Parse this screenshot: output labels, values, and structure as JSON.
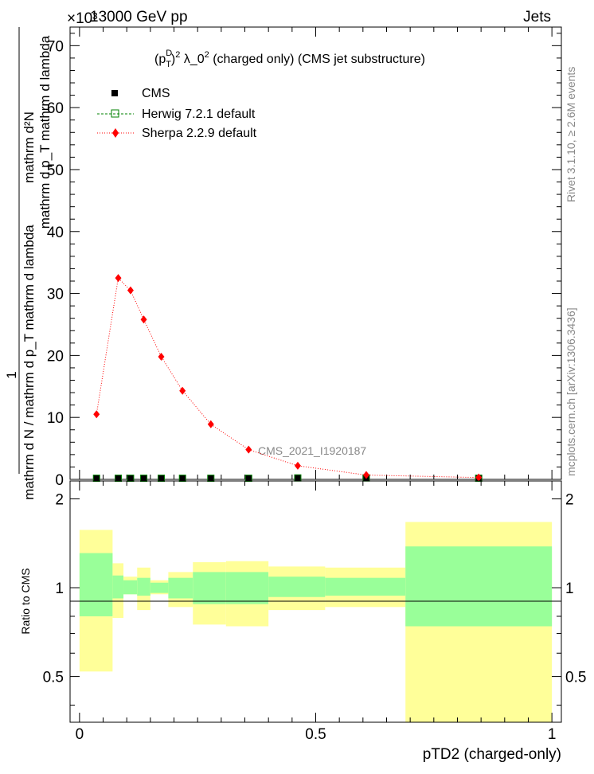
{
  "header": {
    "energy": "13000 GeV pp",
    "category": "Jets",
    "exponent": "×10³"
  },
  "side": {
    "rivet": "Rivet 3.1.10, ≥ 2.6M events",
    "mcplots": "mcplots.cern.ch [arXiv:1306.3436]"
  },
  "watermark": "CMS_2021_I1920187",
  "chart_data": [
    {
      "type": "line",
      "title": "(p_T^D)² λ_0² (charged only) (CMS jet substructure)",
      "title_parts": {
        "p": "(p",
        "sup": "D",
        "sub": "T",
        "rest": ")",
        "sq1": "2",
        "mid": " λ_0",
        "sq2": "2",
        "tail": " (charged only) (CMS jet substructure)"
      },
      "ylabel_top": "1",
      "ylabel_bottom": "mathrm d N / mathrm d p_T mathrm d lambda",
      "ylabel_num": "mathrm d²N",
      "ylabel_den": "mathrm d p_T mathrm d lambda",
      "ylim": [
        0,
        73
      ],
      "yticks": [
        0,
        10,
        20,
        30,
        40,
        50,
        60,
        70
      ],
      "ytick_labels": [
        "0",
        "10",
        "20",
        "30",
        "40",
        "50",
        "60",
        "70"
      ],
      "xlim": [
        -0.02,
        1.02
      ],
      "legend_placement": "top-left",
      "series": [
        {
          "name": "CMS",
          "color": "#000000",
          "marker": "square",
          "x": [
            0.036,
            0.082,
            0.108,
            0.136,
            0.173,
            0.218,
            0.278,
            0.358,
            0.462,
            0.607,
            0.845
          ],
          "y": [
            0.05,
            0.05,
            0.05,
            0.05,
            0.05,
            0.05,
            0.05,
            0.05,
            0.1,
            0.1,
            0.05
          ]
        },
        {
          "name": "Herwig 7.2.1 default",
          "color": "#008000",
          "marker": "open-square",
          "x": [
            0.036,
            0.082,
            0.108,
            0.136,
            0.173,
            0.218,
            0.278,
            0.358,
            0.462,
            0.607,
            0.845
          ],
          "y": [
            0.05,
            0.05,
            0.05,
            0.05,
            0.05,
            0.05,
            0.05,
            0.05,
            0.1,
            0.1,
            0.05
          ]
        },
        {
          "name": "Sherpa 2.2.9 default",
          "color": "#ff0000",
          "marker": "diamond",
          "x": [
            0.036,
            0.082,
            0.108,
            0.136,
            0.173,
            0.218,
            0.278,
            0.358,
            0.462,
            0.607,
            0.845
          ],
          "y": [
            10.5,
            32.5,
            30.5,
            25.8,
            19.8,
            14.3,
            8.9,
            4.8,
            2.2,
            0.7,
            0.3
          ]
        }
      ]
    },
    {
      "type": "area",
      "ylabel": "Ratio to CMS",
      "xlabel": "pTD2 (charged-only)",
      "ylim": [
        0.35,
        2.3
      ],
      "yticks": [
        0.5,
        1,
        2
      ],
      "ytick_labels": [
        "0.5",
        "1",
        "2"
      ],
      "xlim": [
        -0.02,
        1.02
      ],
      "xticks": [
        0,
        0.5,
        1
      ],
      "xtick_labels": [
        "0",
        "0.5",
        "1"
      ],
      "bins": [
        {
          "lo": 0.0,
          "hi": 0.07,
          "inner": [
            0.8,
            1.31
          ],
          "outer": [
            0.52,
            1.57
          ]
        },
        {
          "lo": 0.07,
          "hi": 0.093,
          "inner": [
            0.92,
            1.1
          ],
          "outer": [
            0.79,
            1.21
          ]
        },
        {
          "lo": 0.093,
          "hi": 0.122,
          "inner": [
            0.95,
            1.06
          ],
          "outer": [
            0.95,
            1.09
          ]
        },
        {
          "lo": 0.122,
          "hi": 0.15,
          "inner": [
            0.94,
            1.08
          ],
          "outer": [
            0.84,
            1.17
          ]
        },
        {
          "lo": 0.15,
          "hi": 0.188,
          "inner": [
            0.96,
            1.04
          ],
          "outer": [
            0.95,
            1.06
          ]
        },
        {
          "lo": 0.188,
          "hi": 0.24,
          "inner": [
            0.92,
            1.08
          ],
          "outer": [
            0.86,
            1.13
          ]
        },
        {
          "lo": 0.24,
          "hi": 0.31,
          "inner": [
            0.88,
            1.13
          ],
          "outer": [
            0.75,
            1.22
          ]
        },
        {
          "lo": 0.31,
          "hi": 0.4,
          "inner": [
            0.88,
            1.13
          ],
          "outer": [
            0.74,
            1.23
          ]
        },
        {
          "lo": 0.4,
          "hi": 0.52,
          "inner": [
            0.93,
            1.09
          ],
          "outer": [
            0.84,
            1.18
          ]
        },
        {
          "lo": 0.52,
          "hi": 0.69,
          "inner": [
            0.94,
            1.08
          ],
          "outer": [
            0.86,
            1.17
          ]
        },
        {
          "lo": 0.69,
          "hi": 1.0,
          "inner": [
            0.74,
            1.38
          ],
          "outer": [
            0.35,
            1.67
          ]
        }
      ],
      "inner_color": "#99ff99",
      "outer_color": "#ffff99"
    }
  ]
}
